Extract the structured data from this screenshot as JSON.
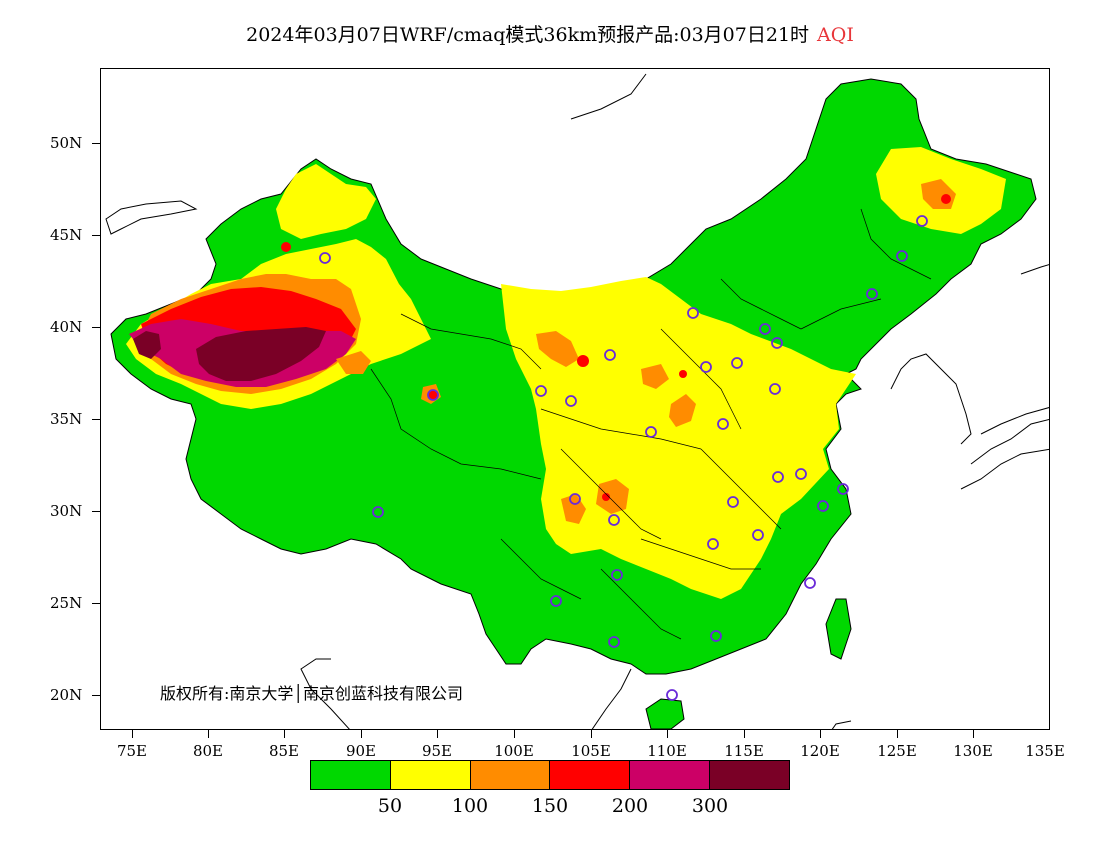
{
  "title": {
    "main": "2024年03月07日WRF/cmaq模式36km预报产品:03月07日21时",
    "variable": "AQI",
    "variable_color": "#e8363a"
  },
  "axes": {
    "latitude_labels": [
      "50N",
      "45N",
      "40N",
      "35N",
      "30N",
      "25N",
      "20N"
    ],
    "longitude_labels": [
      "75E",
      "80E",
      "85E",
      "90E",
      "95E",
      "100E",
      "105E",
      "110E",
      "115E",
      "120E",
      "125E",
      "130E",
      "135E"
    ]
  },
  "copyright": "版权所有:南京大学│南京创蓝科技有限公司",
  "legend": {
    "colors": [
      "#00d800",
      "#ffff00",
      "#ff8c00",
      "#ff0000",
      "#cc0066",
      "#7a0026"
    ],
    "labels": [
      "50",
      "100",
      "150",
      "200",
      "300"
    ]
  },
  "map": {
    "station_marker_color": "#6a2bd8"
  }
}
